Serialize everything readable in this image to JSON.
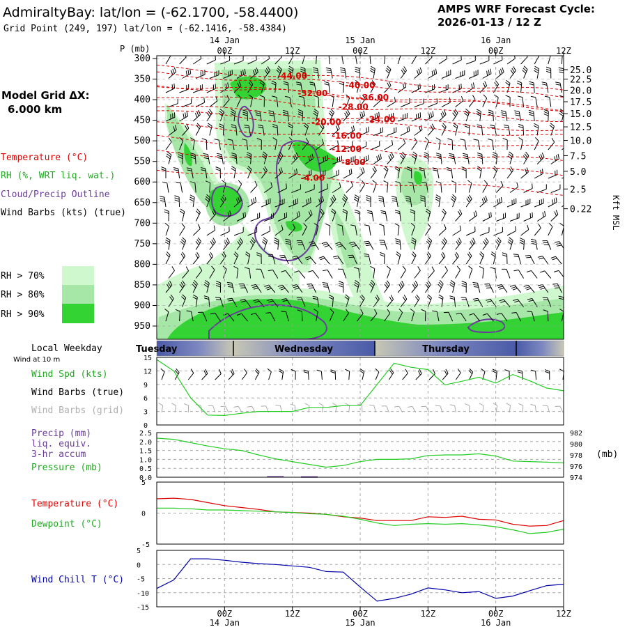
{
  "header": {
    "station_label": "AdmiraltyBay:  lat/lon = (-62.1700, -58.4400)",
    "grid_point": "Grid Point (249, 197) lat/lon = (-62.1416, -58.4384)",
    "cycle_title": "AMPS WRF Forecast Cycle:",
    "cycle_value": "2026-01-13 / 12  Z"
  },
  "top_axis": {
    "hour_labels": [
      "00Z",
      "12Z",
      "00Z",
      "12Z",
      "00Z",
      "12Z"
    ],
    "hour_positions": [
      3,
      4,
      5,
      6,
      7,
      8
    ],
    "date_labels": [
      "14 Jan",
      "15 Jan",
      "16 Jan"
    ],
    "date_positions": [
      3,
      5,
      7
    ]
  },
  "left_legend": {
    "model_grid_title": "Model Grid ΔX:",
    "model_grid_value": "6.000 km",
    "temperature": "Temperature (°C)",
    "rh": "RH (%, WRT liq. wat.)",
    "cloud": "Cloud/Precip Outline",
    "wind": "Wind Barbs (kts) (true)",
    "rh_thresholds": [
      "RH > 70%",
      "RH > 80%",
      "RH > 90%"
    ],
    "rh_colors": [
      "#cff8cf",
      "#a6e6a6",
      "#33d333"
    ]
  },
  "colors": {
    "temperature": "#dd0000",
    "dewpoint": "#22cc22",
    "rh70": "#cff8cf",
    "rh80": "#a6e6a6",
    "rh90": "#33d333",
    "cloud": "#6a3d9a",
    "pressure": "#22cc22",
    "wind_speed": "#22cc22",
    "wind_chill": "#0000aa",
    "grid_barb": "#aaaaaa",
    "weekday_band": "#4a5aa8"
  },
  "chart_data": [
    {
      "type": "heatmap",
      "id": "cross_section",
      "p_axis_label": "P (mb)",
      "pressure_levels": [
        300,
        350,
        400,
        450,
        500,
        550,
        600,
        650,
        700,
        750,
        800,
        850,
        900,
        950
      ],
      "height_axis_label": "Kft MSL",
      "height_labels": [
        {
          "p": 327,
          "label": "25.0"
        },
        {
          "p": 350,
          "label": "22.5"
        },
        {
          "p": 377,
          "label": "20.0"
        },
        {
          "p": 405,
          "label": "17.5"
        },
        {
          "p": 434,
          "label": "15.0"
        },
        {
          "p": 466,
          "label": "12.5"
        },
        {
          "p": 499,
          "label": "10.0"
        },
        {
          "p": 536,
          "label": "7.5"
        },
        {
          "p": 574,
          "label": "5.0"
        },
        {
          "p": 617,
          "label": "2.5"
        },
        {
          "p": 665,
          "label": "0.22"
        }
      ],
      "temperature_contours": [
        {
          "label": "-44.00",
          "t": 4.0,
          "p": 342
        },
        {
          "label": "-40.00",
          "t": 5.0,
          "p": 365
        },
        {
          "label": "-36.00",
          "t": 5.2,
          "p": 395
        },
        {
          "label": "-32.00",
          "t": 4.3,
          "p": 385
        },
        {
          "label": "-28.00",
          "t": 4.9,
          "p": 418
        },
        {
          "label": "-24.00",
          "t": 5.3,
          "p": 448
        },
        {
          "label": "-20.00",
          "t": 4.5,
          "p": 455
        },
        {
          "label": "-16.00",
          "t": 4.8,
          "p": 488
        },
        {
          "label": "-12.00",
          "t": 4.8,
          "p": 520
        },
        {
          "label": "-8.00",
          "t": 4.9,
          "p": 552
        },
        {
          "label": "-4.00",
          "t": 4.3,
          "p": 590
        }
      ]
    },
    {
      "type": "line",
      "id": "wind_panel",
      "weekday_label": "Local Weekday",
      "weekdays": [
        "Tuesday",
        "Wednesday",
        "Thursday"
      ],
      "wind_height_note": "Wind at 10 m",
      "labels": [
        "Wind Spd (kts)",
        "Wind Barbs (true)",
        "Wind Barbs (grid)"
      ],
      "yticks": [
        0,
        3,
        6,
        9,
        12,
        15
      ],
      "ylim": [
        0,
        15
      ],
      "x": [
        2.0,
        2.25,
        2.5,
        2.75,
        3.0,
        3.25,
        3.5,
        3.75,
        4.0,
        4.25,
        4.5,
        4.75,
        5.0,
        5.25,
        5.5,
        5.75,
        6.0,
        6.25,
        6.5,
        6.75,
        7.0,
        7.25,
        7.5,
        7.75,
        8.0
      ],
      "series": [
        {
          "name": "Wind Spd (kts)",
          "values": [
            14.5,
            12.0,
            6.0,
            2.2,
            2.1,
            2.6,
            3.0,
            3.0,
            3.0,
            3.9,
            3.9,
            4.3,
            4.3,
            9.0,
            13.7,
            12.8,
            12.3,
            8.9,
            9.7,
            10.6,
            9.3,
            11.2,
            9.8,
            8.2,
            7.6
          ]
        }
      ]
    },
    {
      "type": "line",
      "id": "precip_pressure_panel",
      "labels": [
        "Precip (mm)",
        "liq. equiv.",
        "3-hr accum",
        "Pressure (mb)"
      ],
      "left_yticks": [
        "0.0",
        "0.5",
        "1.0",
        "1.5",
        "2.0",
        "2.5"
      ],
      "right_yticks": [
        "974",
        "976",
        "978",
        "980",
        "982"
      ],
      "right_unit": "(mb)",
      "pressure_lim": [
        974,
        982
      ],
      "precip_lim": [
        0,
        2.5
      ],
      "x": [
        2.0,
        2.25,
        2.5,
        2.75,
        3.0,
        3.25,
        3.5,
        3.75,
        4.0,
        4.25,
        4.5,
        4.75,
        5.0,
        5.25,
        5.5,
        5.75,
        6.0,
        6.25,
        6.5,
        6.75,
        7.0,
        7.25,
        7.5,
        7.75,
        8.0
      ],
      "series": [
        {
          "name": "Pressure (mb)",
          "values": [
            981.0,
            980.8,
            980.2,
            979.6,
            979.1,
            978.8,
            978.0,
            977.3,
            976.8,
            976.3,
            975.8,
            976.1,
            976.8,
            977.2,
            977.2,
            977.3,
            977.9,
            978.0,
            978.0,
            978.2,
            977.8,
            976.9,
            976.8,
            976.7,
            976.6
          ]
        }
      ],
      "precip": [
        {
          "t": 3.75,
          "value": 0.06
        },
        {
          "t": 4.25,
          "value": 0.05
        }
      ]
    },
    {
      "type": "line",
      "id": "temp_dew_panel",
      "labels": [
        "Temperature (°C)",
        "Dewpoint (°C)"
      ],
      "yticks": [
        -5,
        0,
        5
      ],
      "ylim": [
        -5,
        5
      ],
      "x": [
        2.0,
        2.25,
        2.5,
        2.75,
        3.0,
        3.25,
        3.5,
        3.75,
        4.0,
        4.25,
        4.5,
        4.75,
        5.0,
        5.25,
        5.5,
        5.75,
        6.0,
        6.25,
        6.5,
        6.75,
        7.0,
        7.25,
        7.5,
        7.75,
        8.0
      ],
      "series": [
        {
          "name": "Temperature (°C)",
          "values": [
            2.3,
            2.4,
            2.2,
            1.7,
            1.2,
            0.9,
            0.6,
            0.2,
            0.1,
            0.0,
            -0.2,
            -0.6,
            -0.8,
            -1.2,
            -1.2,
            -1.2,
            -0.6,
            -0.7,
            -0.5,
            -1.0,
            -1.1,
            -1.8,
            -2.1,
            -2.0,
            -1.2
          ]
        },
        {
          "name": "Dewpoint (°C)",
          "values": [
            0.8,
            0.8,
            0.7,
            0.5,
            0.5,
            0.4,
            0.3,
            0.2,
            0.1,
            -0.1,
            -0.2,
            -0.5,
            -1.0,
            -1.6,
            -2.0,
            -1.8,
            -1.7,
            -1.8,
            -1.7,
            -1.9,
            -2.2,
            -2.7,
            -3.3,
            -3.1,
            -2.6
          ]
        }
      ]
    },
    {
      "type": "line",
      "id": "wind_chill_panel",
      "labels": [
        "Wind Chill T (°C)"
      ],
      "yticks": [
        -15,
        -10,
        -5,
        0,
        5
      ],
      "ylim": [
        -15,
        5
      ],
      "x": [
        2.0,
        2.25,
        2.5,
        2.75,
        3.0,
        3.25,
        3.5,
        3.75,
        4.0,
        4.25,
        4.5,
        4.75,
        5.0,
        5.25,
        5.5,
        5.75,
        6.0,
        6.25,
        6.5,
        6.75,
        7.0,
        7.25,
        7.5,
        7.75,
        8.0
      ],
      "series": [
        {
          "name": "Wind Chill T (°C)",
          "values": [
            -8.5,
            -5.5,
            2.0,
            2.0,
            1.5,
            0.8,
            0.3,
            0.0,
            -0.5,
            -1.0,
            -2.5,
            -2.7,
            -8.0,
            -13.0,
            -12.0,
            -10.5,
            -8.3,
            -9.0,
            -10.0,
            -9.6,
            -12.0,
            -11.2,
            -9.3,
            -7.5,
            -7.0
          ]
        }
      ]
    }
  ],
  "bottom_axis": {
    "hour_labels": [
      "00Z",
      "12Z",
      "00Z",
      "12Z",
      "00Z",
      "12Z"
    ],
    "hour_positions": [
      3,
      4,
      5,
      6,
      7,
      8
    ],
    "date_labels": [
      "14 Jan",
      "15 Jan",
      "16 Jan"
    ],
    "date_positions": [
      3,
      5,
      7
    ]
  }
}
